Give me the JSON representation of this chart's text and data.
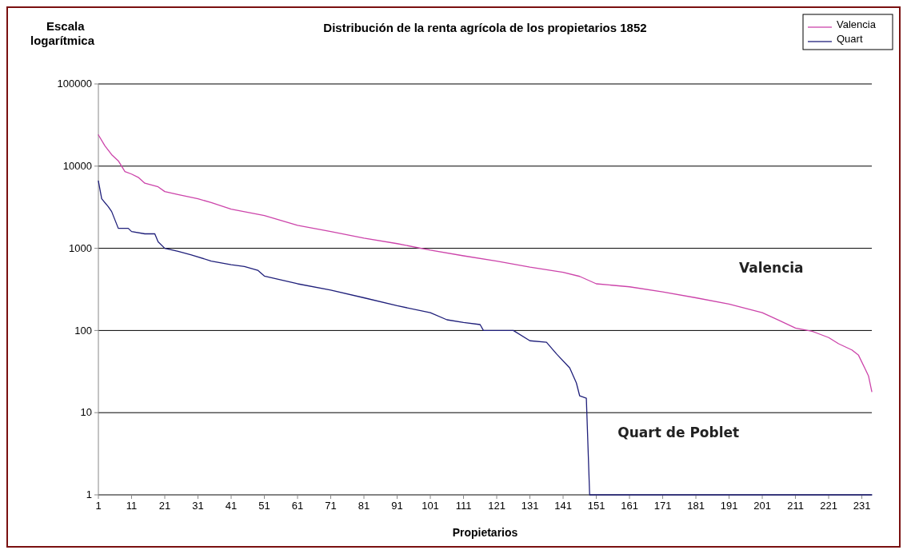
{
  "chart_data": {
    "type": "line",
    "title": "Distribución de la renta agrícola de los propietarios 1852",
    "xlabel": "Propietarios",
    "ylabel": "Escala logarítmica",
    "log": "y",
    "grid": "y",
    "legend": "top right",
    "marker": "none",
    "line_style": "solid",
    "xlim": [
      1,
      234
    ],
    "xticks": [
      1,
      11,
      21,
      31,
      41,
      51,
      61,
      71,
      81,
      91,
      101,
      111,
      121,
      131,
      141,
      151,
      161,
      171,
      181,
      191,
      201,
      211,
      221,
      231
    ],
    "ylim": [
      1,
      100000
    ],
    "yticks": [
      1,
      10,
      100,
      1000,
      10000,
      100000
    ],
    "annotations": [
      "Valencia",
      "Quart de Poblet"
    ],
    "series": [
      {
        "name": "Valencia",
        "color": "#cc44aa",
        "x": [
          1,
          3,
          5,
          7,
          9,
          11,
          13,
          15,
          19,
          21,
          25,
          31,
          35,
          41,
          51,
          61,
          71,
          81,
          91,
          101,
          111,
          121,
          131,
          141,
          146,
          151,
          161,
          171,
          181,
          191,
          201,
          206,
          211,
          216,
          221,
          224,
          228,
          230,
          232,
          233,
          234
        ],
        "values": [
          24000,
          17600,
          13800,
          11600,
          8600,
          8000,
          7300,
          6200,
          5600,
          4900,
          4500,
          4000,
          3600,
          3000,
          2500,
          1900,
          1600,
          1330,
          1140,
          950,
          810,
          700,
          590,
          510,
          455,
          370,
          340,
          295,
          250,
          210,
          165,
          133,
          107,
          98,
          82,
          69,
          58,
          50,
          34,
          28,
          18
        ]
      },
      {
        "name": "Quart",
        "color": "#1f1f7a",
        "x": [
          1,
          2,
          4,
          5,
          7,
          10,
          11,
          15,
          18,
          19,
          21,
          25,
          29,
          35,
          41,
          45,
          49,
          51,
          61,
          71,
          81,
          91,
          101,
          106,
          111,
          116,
          117,
          126,
          131,
          136,
          139,
          143,
          145,
          146,
          148,
          149,
          234
        ],
        "values": [
          6600,
          4000,
          3200,
          2800,
          1750,
          1750,
          1600,
          1500,
          1500,
          1200,
          1000,
          920,
          830,
          700,
          630,
          600,
          540,
          460,
          370,
          310,
          250,
          200,
          165,
          135,
          125,
          118,
          100,
          100,
          75,
          72,
          52,
          35,
          23,
          16,
          15,
          1,
          1
        ]
      }
    ]
  }
}
